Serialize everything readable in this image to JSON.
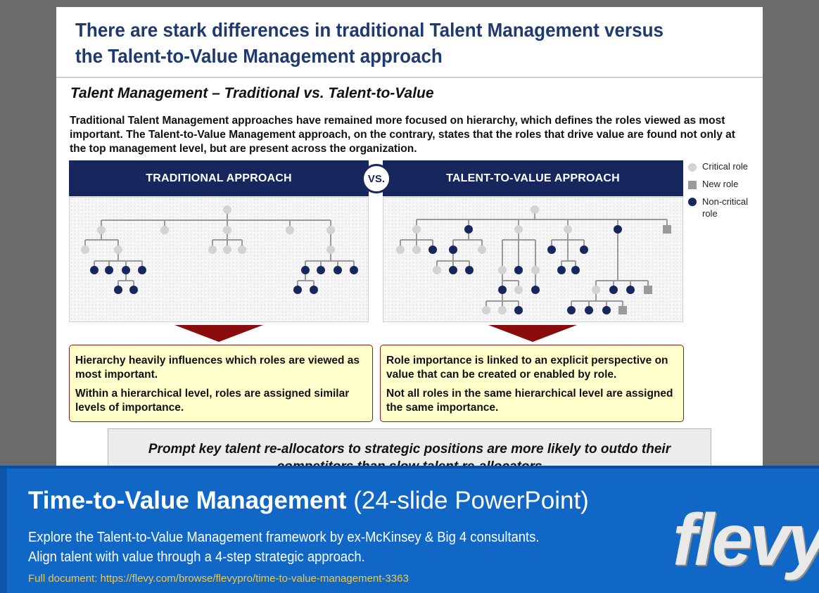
{
  "slide": {
    "title_line1": "There are stark differences in traditional Talent Management versus",
    "title_line2": "the Talent-to-Value Management approach",
    "subtitle": "Talent Management – Traditional vs. Talent-to-Value",
    "intro": "Traditional Talent Management approaches have remained more focused on hierarchy, which defines the roles viewed as most important.  The Talent-to-Value Management approach, on the contrary, states that the roles that drive value are found not only at the top management level, but are present across the organization."
  },
  "traditional": {
    "header": "TRADITIONAL APPROACH",
    "callout_p1": "Hierarchy heavily influences which roles are viewed as most important.",
    "callout_p2": "Within a hierarchical level, roles are assigned similar levels of importance."
  },
  "vs_label": "VS.",
  "talent_to_value": {
    "header": "TALENT-TO-VALUE APPROACH",
    "callout_p1": "Role importance is linked to an explicit perspective on value that can be created or enabled by role.",
    "callout_p2": "Not all roles in the same hierarchical level are assigned the same importance."
  },
  "legend": [
    {
      "label": "Critical role",
      "shape": "circle",
      "color": "#d3d3d3"
    },
    {
      "label": "New role",
      "shape": "square",
      "color": "#9a9a9a"
    },
    {
      "label": "Non-critical role",
      "shape": "circle",
      "color": "#17275e"
    }
  ],
  "quote": "Prompt key talent re-allocators to strategic positions are more likely to outdo their competitors than slow talent re-allocators",
  "banner": {
    "title_bold": "Time-to-Value Management",
    "title_rest": " (24-slide PowerPoint)",
    "desc_line1": "Explore the Talent-to-Value Management framework by ex-McKinsey & Big 4 consultants.",
    "desc_line2": "Align talent with value through a 4-step strategic approach.",
    "link": "Full document: https://flevy.com/browse/flevypro/time-to-value-management-3363",
    "logo": "flevy"
  },
  "colors": {
    "navy": "#17275e",
    "title_blue": "#1f3a6e",
    "critical": "#d3d3d3",
    "new_role": "#9a9a9a",
    "arrow_red": "#8b0c0c",
    "callout_bg": "#ffffcc",
    "banner_blue": "#1067c6",
    "link_gold": "#f0c94a"
  }
}
